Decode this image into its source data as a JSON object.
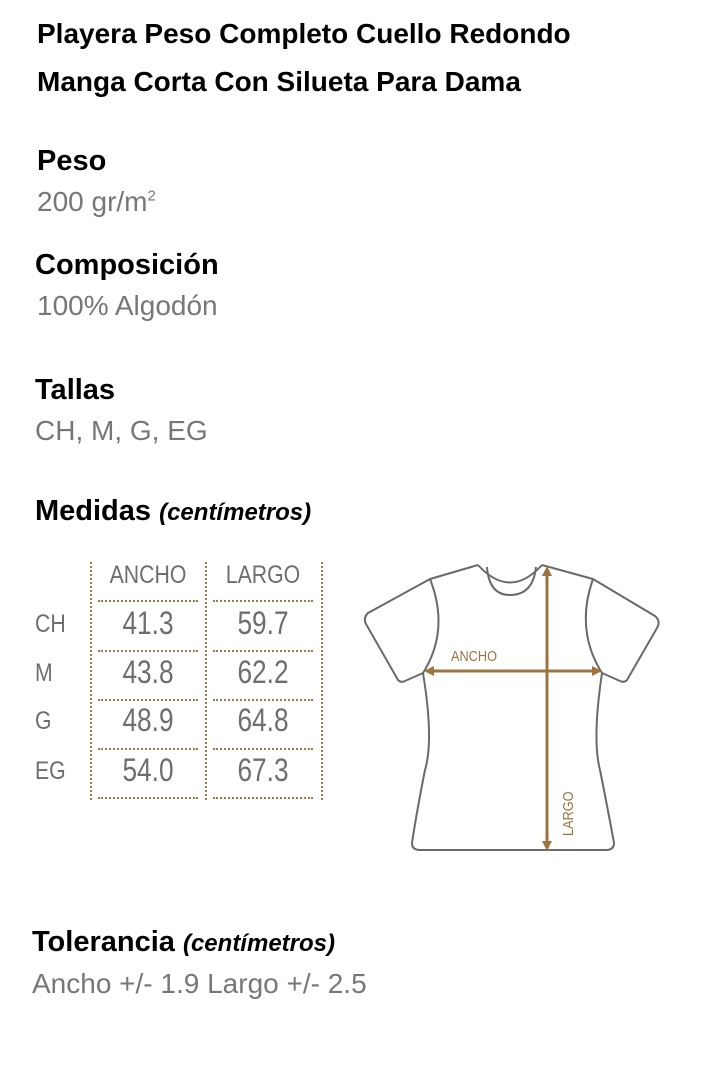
{
  "title_lines": [
    "Playera Peso Completo Cuello Redondo",
    "Manga Corta Con Silueta Para Dama"
  ],
  "peso": {
    "label": "Peso",
    "value": "200 gr/m",
    "sup": "2"
  },
  "composicion": {
    "label": "Composición",
    "value": "100% Algodón"
  },
  "tallas": {
    "label": "Tallas",
    "value": "CH, M, G, EG"
  },
  "medidas": {
    "label": "Medidas",
    "unit": "(centímetros)"
  },
  "table": {
    "headers": [
      "ANCHO",
      "LARGO"
    ],
    "rows": [
      {
        "size": "CH",
        "ancho": "41.3",
        "largo": "59.7"
      },
      {
        "size": "M",
        "ancho": "43.8",
        "largo": "62.2"
      },
      {
        "size": "G",
        "ancho": "48.9",
        "largo": "64.8"
      },
      {
        "size": "EG",
        "ancho": "54.0",
        "largo": "67.3"
      }
    ]
  },
  "diagram": {
    "ancho_label": "ANCHO",
    "largo_label": "LARGO",
    "accent_color": "#9b7440",
    "outline_color": "#6a6a6a"
  },
  "tolerancia": {
    "label": "Tolerancia",
    "unit": "(centímetros)",
    "value": "Ancho +/- 1.9 Largo +/- 2.5"
  }
}
